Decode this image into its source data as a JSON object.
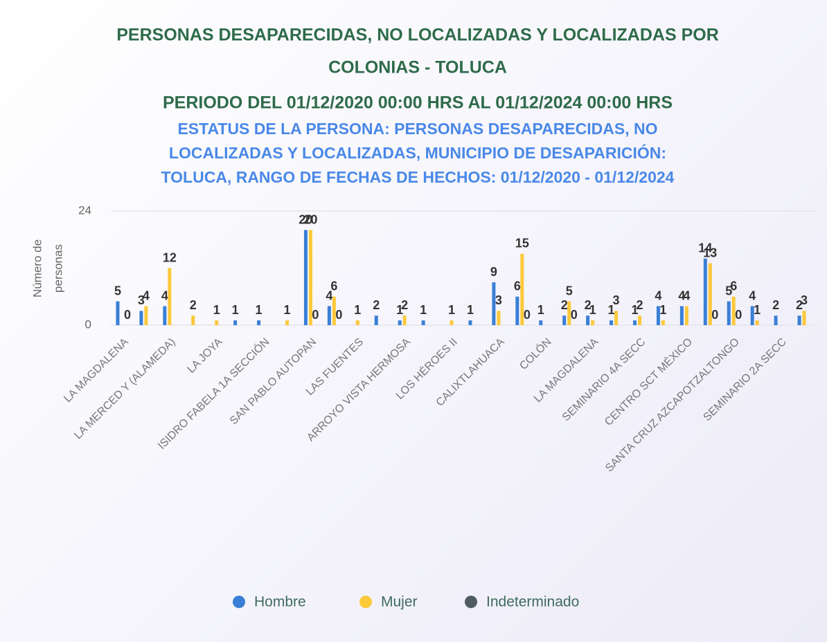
{
  "chart_data": {
    "type": "bar",
    "title_lines": [
      "PERSONAS DESAPARECIDAS, NO LOCALIZADAS Y LOCALIZADAS POR",
      "COLONIAS - TOLUCA"
    ],
    "period": "PERIODO DEL 01/12/2020 00:00 HRS AL 01/12/2024 00:00 HRS",
    "subtitle_lines": [
      "ESTATUS DE LA PERSONA: PERSONAS DESAPARECIDAS, NO",
      "LOCALIZADAS Y LOCALIZADAS, MUNICIPIO DE DESAPARICIÓN:",
      "TOLUCA, RANGO DE FECHAS DE HECHOS: 01/12/2020 - 01/12/2024"
    ],
    "y_label_lines": [
      "Número de",
      "personas"
    ],
    "categories": [
      "LA MAGDALENA",
      null,
      "LA MERCED Y (ALAMEDA)",
      null,
      "LA JOYA",
      null,
      "ISIDRO FABELA 1A SECCIÓN",
      null,
      "SAN PABLO AUTOPAN",
      null,
      "LAS FUENTES",
      null,
      "ARROYO VISTA HERMOSA",
      null,
      "LOS HÉROES II",
      null,
      "CALIXTLAHUACA",
      null,
      "COLÓN",
      null,
      "LA MAGDALENA",
      null,
      "SEMINARIO 4A SECC",
      null,
      "CENTRO SCT MÉXICO",
      null,
      "SANTA CRUZ AZCAPOTZALTONGO",
      null,
      "SEMINARIO 2A SECC",
      null
    ],
    "series": [
      {
        "name": "Hombre",
        "color": "#3a7fd5",
        "values": [
          5,
          3,
          4,
          null,
          null,
          1,
          1,
          null,
          20,
          4,
          null,
          2,
          1,
          1,
          null,
          1,
          9,
          6,
          1,
          2,
          2,
          1,
          1,
          4,
          4,
          14,
          5,
          4,
          2,
          2
        ]
      },
      {
        "name": "Mujer",
        "color": "#fcc93a",
        "values": [
          null,
          4,
          12,
          2,
          1,
          null,
          null,
          1,
          20,
          6,
          1,
          null,
          2,
          null,
          1,
          null,
          3,
          15,
          null,
          5,
          1,
          3,
          2,
          1,
          4,
          13,
          6,
          1,
          null,
          3
        ]
      },
      {
        "name": "Indeterminado",
        "color": "#4f5b62",
        "values": [
          0,
          null,
          null,
          null,
          null,
          null,
          null,
          null,
          0,
          0,
          null,
          null,
          null,
          null,
          null,
          null,
          null,
          0,
          null,
          0,
          null,
          null,
          null,
          null,
          null,
          0,
          0,
          null,
          null,
          null
        ]
      }
    ],
    "ylim": [
      0,
      24
    ],
    "yticks": [
      0,
      24
    ],
    "grid": true
  }
}
